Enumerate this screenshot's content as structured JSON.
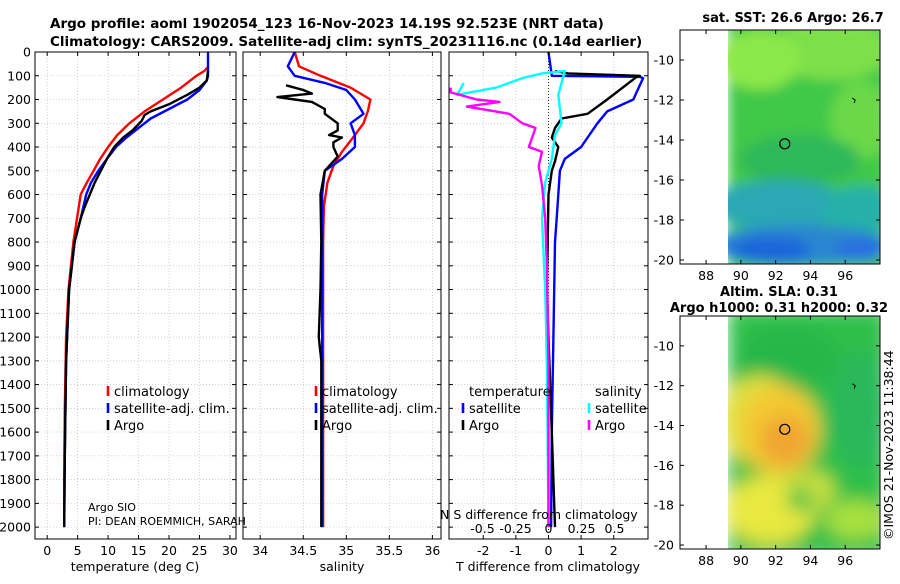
{
  "header": {
    "line1": "Argo profile: aoml 1902054_123 16-Nov-2023 14.19S 92.523E (NRT data)",
    "line2": "Climatology: CARS2009. Satellite-adj clim: synTS_20231116.nc (0.14d earlier)"
  },
  "footer": {
    "pi_line1": "Argo SIO",
    "pi_line2": "PI: DEAN ROEMMICH, SARAH",
    "diff_overlap_text": "N S difference from climatology",
    "credit": "©IMOS 21-Nov-2023 11:38:44"
  },
  "colors": {
    "climatology": "#ff0000",
    "satellite": "#0000ff",
    "argo": "#000000",
    "sal_satellite": "#00ffff",
    "sal_argo": "#ff00ff"
  },
  "chart_data": [
    {
      "type": "line",
      "id": "temperature",
      "xlabel": "temperature (deg C)",
      "xlim": [
        -2,
        31
      ],
      "xticks": [
        0,
        5,
        10,
        15,
        20,
        25,
        30
      ],
      "xticklabels": [
        "0",
        "5",
        "10",
        "15",
        "20",
        "25",
        "30"
      ],
      "ylim": [
        0,
        2050
      ],
      "yticks": [
        0,
        100,
        200,
        300,
        400,
        500,
        600,
        700,
        800,
        900,
        1000,
        1100,
        1200,
        1300,
        1400,
        1500,
        1600,
        1700,
        1800,
        1900,
        2000
      ],
      "yticklabels": [
        "0",
        "100",
        "200",
        "300",
        "400",
        "500",
        "600",
        "700",
        "800",
        "900",
        "1000",
        "1100",
        "1200",
        "1300",
        "1400",
        "1500",
        "1600",
        "1700",
        "1800",
        "1900",
        "2000"
      ],
      "legend": [
        "climatology",
        "satellite-adj. clim.",
        "Argo"
      ],
      "series": [
        {
          "name": "climatology",
          "color": "#ff0000",
          "x": [
            26.5,
            25.8,
            24.5,
            22,
            19,
            16,
            13.5,
            11.5,
            10,
            8.7,
            7.6,
            6.5,
            5.5,
            4.9,
            4.3,
            3.5,
            3.1,
            2.9,
            2.8,
            2.8
          ],
          "y": [
            60,
            80,
            100,
            150,
            200,
            250,
            300,
            350,
            400,
            450,
            500,
            550,
            600,
            700,
            800,
            1000,
            1200,
            1500,
            1800,
            2000
          ]
        },
        {
          "name": "satellite-adj. clim.",
          "color": "#0000ff",
          "x": [
            26.4,
            26.4,
            26.2,
            25,
            23,
            20,
            17,
            15,
            13,
            11.3,
            9.8,
            8.4,
            7.2,
            6.4,
            5.5,
            4.5,
            3.6,
            3.1,
            2.9,
            2.8
          ],
          "y": [
            0,
            100,
            120,
            160,
            200,
            240,
            280,
            320,
            360,
            400,
            450,
            500,
            550,
            600,
            700,
            800,
            1000,
            1300,
            1700,
            2000
          ]
        },
        {
          "name": "Argo",
          "color": "#000000",
          "x": [
            26.4,
            26.2,
            25,
            23,
            20,
            17,
            16,
            15.5,
            14,
            12.5,
            11,
            9.8,
            8.8,
            7.8,
            7,
            6.2,
            5.5,
            4.5,
            3.6,
            3.1,
            2.9,
            2.8
          ],
          "y": [
            80,
            120,
            150,
            180,
            220,
            250,
            265,
            290,
            330,
            360,
            400,
            450,
            500,
            550,
            600,
            650,
            700,
            800,
            1000,
            1300,
            1700,
            2000
          ]
        }
      ]
    },
    {
      "type": "line",
      "id": "salinity",
      "xlabel": "salinity",
      "xlim": [
        33.8,
        36.1
      ],
      "xticks": [
        34,
        34.5,
        35,
        35.5,
        36
      ],
      "xticklabels": [
        "34",
        "34.5",
        "35",
        "35.5",
        "36"
      ],
      "ylim": [
        0,
        2050
      ],
      "legend": [
        "climatology",
        "satellite-adj. clim.",
        "Argo"
      ],
      "series": [
        {
          "name": "climatology",
          "color": "#ff0000",
          "x": [
            34.4,
            34.45,
            34.7,
            35.05,
            35.28,
            35.25,
            35.2,
            35.1,
            34.95,
            34.85,
            34.78,
            34.74,
            34.73,
            34.73,
            34.73
          ],
          "y": [
            0,
            60,
            100,
            150,
            200,
            250,
            300,
            350,
            420,
            480,
            550,
            650,
            800,
            1200,
            2000
          ]
        },
        {
          "name": "satellite-adj. clim.",
          "color": "#0000ff",
          "x": [
            34.4,
            34.32,
            34.4,
            34.75,
            35.0,
            35.1,
            35.2,
            35.05,
            35.1,
            35.1,
            34.95,
            34.75,
            34.72,
            34.72,
            34.72,
            34.72
          ],
          "y": [
            0,
            60,
            100,
            130,
            160,
            200,
            260,
            300,
            350,
            400,
            450,
            500,
            600,
            800,
            1200,
            2000
          ]
        },
        {
          "name": "Argo",
          "color": "#000000",
          "x": [
            34.3,
            34.5,
            34.6,
            34.2,
            34.4,
            34.6,
            34.75,
            34.75,
            34.9,
            34.9,
            34.8,
            34.95,
            34.85,
            34.85,
            34.9,
            34.75,
            34.7,
            34.71,
            34.7,
            34.68,
            34.71,
            34.71
          ],
          "y": [
            140,
            160,
            175,
            190,
            200,
            210,
            240,
            260,
            300,
            330,
            350,
            360,
            380,
            400,
            440,
            500,
            600,
            800,
            1000,
            1200,
            1300,
            2000
          ]
        }
      ]
    },
    {
      "type": "line",
      "id": "difference",
      "xlabel": "T difference from climatology",
      "xlim": [
        -3.05,
        3.05
      ],
      "xticks": [
        -2,
        -1,
        0,
        1,
        2
      ],
      "xticklabels": [
        "-2",
        "-1",
        "0",
        "1",
        "2"
      ],
      "top_scale_label": "S difference from climatology",
      "top_xticks": [
        -0.5,
        -0.25,
        0,
        0.25,
        0.5
      ],
      "top_xticklabels": [
        "-0.5",
        "-0.25",
        "0",
        "0.25",
        "0.5"
      ],
      "ylim": [
        0,
        2050
      ],
      "legend_titles": [
        "temperature",
        "salinity"
      ],
      "legend": [
        "satellite",
        "Argo",
        "satellite",
        "Argo"
      ],
      "series": [
        {
          "name": "temperature satellite",
          "color": "#0000ff",
          "x": [
            0,
            0.1,
            2.8,
            2.9,
            2.6,
            1.8,
            1.5,
            1.0,
            0.5,
            0.35,
            0.3,
            0.25,
            0.2,
            0.15,
            0.1,
            0.08
          ],
          "y": [
            0,
            100,
            105,
            110,
            200,
            250,
            300,
            400,
            450,
            500,
            600,
            700,
            800,
            1200,
            1600,
            2000
          ]
        },
        {
          "name": "temperature Argo",
          "color": "#000000",
          "x": [
            0.2,
            0.6,
            2.8,
            2.7,
            1.8,
            1.2,
            0.4,
            0.2,
            0.1,
            0.3,
            0.2,
            0.1,
            0.0,
            -0.05,
            0.0,
            0.1,
            0.2
          ],
          "y": [
            80,
            90,
            100,
            105,
            200,
            260,
            280,
            320,
            360,
            400,
            460,
            500,
            600,
            1000,
            1200,
            1600,
            2000
          ]
        },
        {
          "name": "salinity satellite",
          "color": "#00ffff",
          "x": [
            -2.6,
            -2.8,
            -1.6,
            -0.8,
            -0.2,
            0.5,
            0.3,
            0.4,
            0.2,
            0.1,
            -0.1,
            -0.2,
            -0.1,
            -0.05,
            0.0
          ],
          "y": [
            130,
            180,
            150,
            110,
            90,
            80,
            180,
            300,
            350,
            450,
            550,
            700,
            1000,
            1300,
            2000
          ]
        },
        {
          "name": "salinity Argo",
          "color": "#ff00ff",
          "x": [
            -3.0,
            -3.0,
            -2.2,
            -1.5,
            -2.5,
            -1.2,
            -0.8,
            -0.4,
            -0.6,
            -0.2,
            -0.3,
            -0.2,
            -0.1,
            -0.05,
            0.0,
            0.0
          ],
          "y": [
            150,
            170,
            200,
            210,
            230,
            260,
            300,
            320,
            400,
            420,
            480,
            560,
            700,
            900,
            1300,
            2000
          ]
        }
      ]
    },
    {
      "type": "heatmap",
      "id": "sst_map",
      "title": "sat. SST: 26.6 Argo: 26.7",
      "xlim": [
        86.5,
        98
      ],
      "ylim": [
        -20.2,
        -8.5
      ],
      "xticks": [
        88,
        90,
        92,
        94,
        96
      ],
      "yticks": [
        -10,
        -12,
        -14,
        -16,
        -18,
        -20
      ],
      "marker": {
        "lon": 92.523,
        "lat": -14.19
      }
    },
    {
      "type": "heatmap",
      "id": "sla_map",
      "title_line1": "Altim. SLA: 0.31",
      "title_line2": "Argo h1000: 0.31 h2000: 0.32",
      "xlim": [
        86.5,
        98
      ],
      "ylim": [
        -20.2,
        -8.5
      ],
      "xticks": [
        88,
        90,
        92,
        94,
        96
      ],
      "yticks": [
        -10,
        -12,
        -14,
        -16,
        -18,
        -20
      ],
      "marker": {
        "lon": 92.523,
        "lat": -14.19
      }
    }
  ]
}
